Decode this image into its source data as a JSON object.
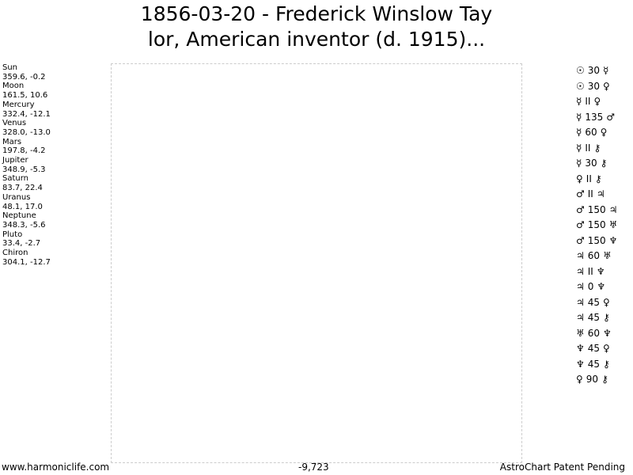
{
  "title": {
    "line1": "1856-03-20 - Frederick Winslow Tay",
    "line2": "lor, American inventor (d. 1915)..."
  },
  "bodies": [
    {
      "name": "Sun",
      "pos": "359.6, -0.2"
    },
    {
      "name": "Moon",
      "pos": "161.5, 10.6"
    },
    {
      "name": "Mercury",
      "pos": "332.4, -12.1"
    },
    {
      "name": "Venus",
      "pos": "328.0, -13.0"
    },
    {
      "name": "Mars",
      "pos": "197.8, -4.2"
    },
    {
      "name": "Jupiter",
      "pos": "348.9, -5.3"
    },
    {
      "name": "Saturn",
      "pos": "83.7, 22.4"
    },
    {
      "name": "Uranus",
      "pos": "48.1, 17.0"
    },
    {
      "name": "Neptune",
      "pos": "348.3, -5.6"
    },
    {
      "name": "Pluto",
      "pos": "33.4, -2.7"
    },
    {
      "name": "Chiron",
      "pos": "304.1, -12.7"
    }
  ],
  "aspects": [
    {
      "a": "☉",
      "angle": "30",
      "b": "☿"
    },
    {
      "a": "☉",
      "angle": "30",
      "b": "♀"
    },
    {
      "a": "☿",
      "angle": "II",
      "b": "♀"
    },
    {
      "a": "☿",
      "angle": "135",
      "b": "♂"
    },
    {
      "a": "☿",
      "angle": "60",
      "b": "♀"
    },
    {
      "a": "☿",
      "angle": "II",
      "b": "⚷"
    },
    {
      "a": "☿",
      "angle": "30",
      "b": "⚷"
    },
    {
      "a": "♀",
      "angle": "II",
      "b": "⚷"
    },
    {
      "a": "♂",
      "angle": "II",
      "b": "♃"
    },
    {
      "a": "♂",
      "angle": "150",
      "b": "♃"
    },
    {
      "a": "♂",
      "angle": "150",
      "b": "♅"
    },
    {
      "a": "♂",
      "angle": "150",
      "b": "♆"
    },
    {
      "a": "♃",
      "angle": "60",
      "b": "♅"
    },
    {
      "a": "♃",
      "angle": "II",
      "b": "♆"
    },
    {
      "a": "♃",
      "angle": "0",
      "b": "♆"
    },
    {
      "a": "♃",
      "angle": "45",
      "b": "♀"
    },
    {
      "a": "♃",
      "angle": "45",
      "b": "⚷"
    },
    {
      "a": "♅",
      "angle": "60",
      "b": "♆"
    },
    {
      "a": "♆",
      "angle": "45",
      "b": "♀"
    },
    {
      "a": "♆",
      "angle": "45",
      "b": "⚷"
    },
    {
      "a": "♀",
      "angle": "90",
      "b": "⚷"
    }
  ],
  "footer": {
    "left": "www.harmoniclife.com",
    "center": "-9,723",
    "right": "AstroChart Patent Pending"
  }
}
